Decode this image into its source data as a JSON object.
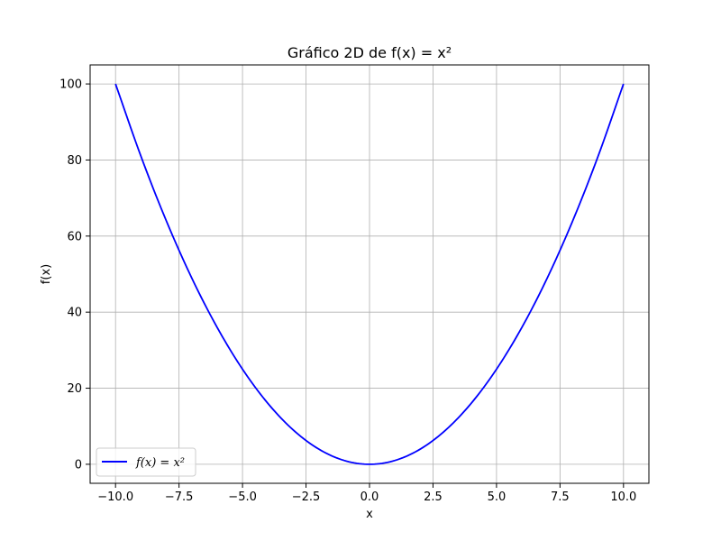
{
  "chart_data": {
    "type": "line",
    "title": "Gráfico 2D de f(x) = x²",
    "xlabel": "x",
    "ylabel": "f(x)",
    "xlim": [
      -11,
      11
    ],
    "ylim": [
      -5,
      105
    ],
    "grid": true,
    "legend_position": "lower-left",
    "x_ticks": [
      -10,
      -7.5,
      -5,
      -2.5,
      0,
      2.5,
      5,
      7.5,
      10
    ],
    "x_tick_labels": [
      "−10.0",
      "−7.5",
      "−5.0",
      "−2.5",
      "0.0",
      "2.5",
      "5.0",
      "7.5",
      "10.0"
    ],
    "y_ticks": [
      0,
      20,
      40,
      60,
      80,
      100
    ],
    "y_tick_labels": [
      "0",
      "20",
      "40",
      "60",
      "80",
      "100"
    ],
    "series": [
      {
        "name": "f(x) = x²",
        "color": "#0000ff",
        "x": [
          -10,
          -9,
          -8,
          -7,
          -6,
          -5,
          -4,
          -3,
          -2,
          -1,
          0,
          1,
          2,
          3,
          4,
          5,
          6,
          7,
          8,
          9,
          10
        ],
        "y": [
          100,
          81,
          64,
          49,
          36,
          25,
          16,
          9,
          4,
          1,
          0,
          1,
          4,
          9,
          16,
          25,
          36,
          49,
          64,
          81,
          100
        ]
      }
    ]
  }
}
